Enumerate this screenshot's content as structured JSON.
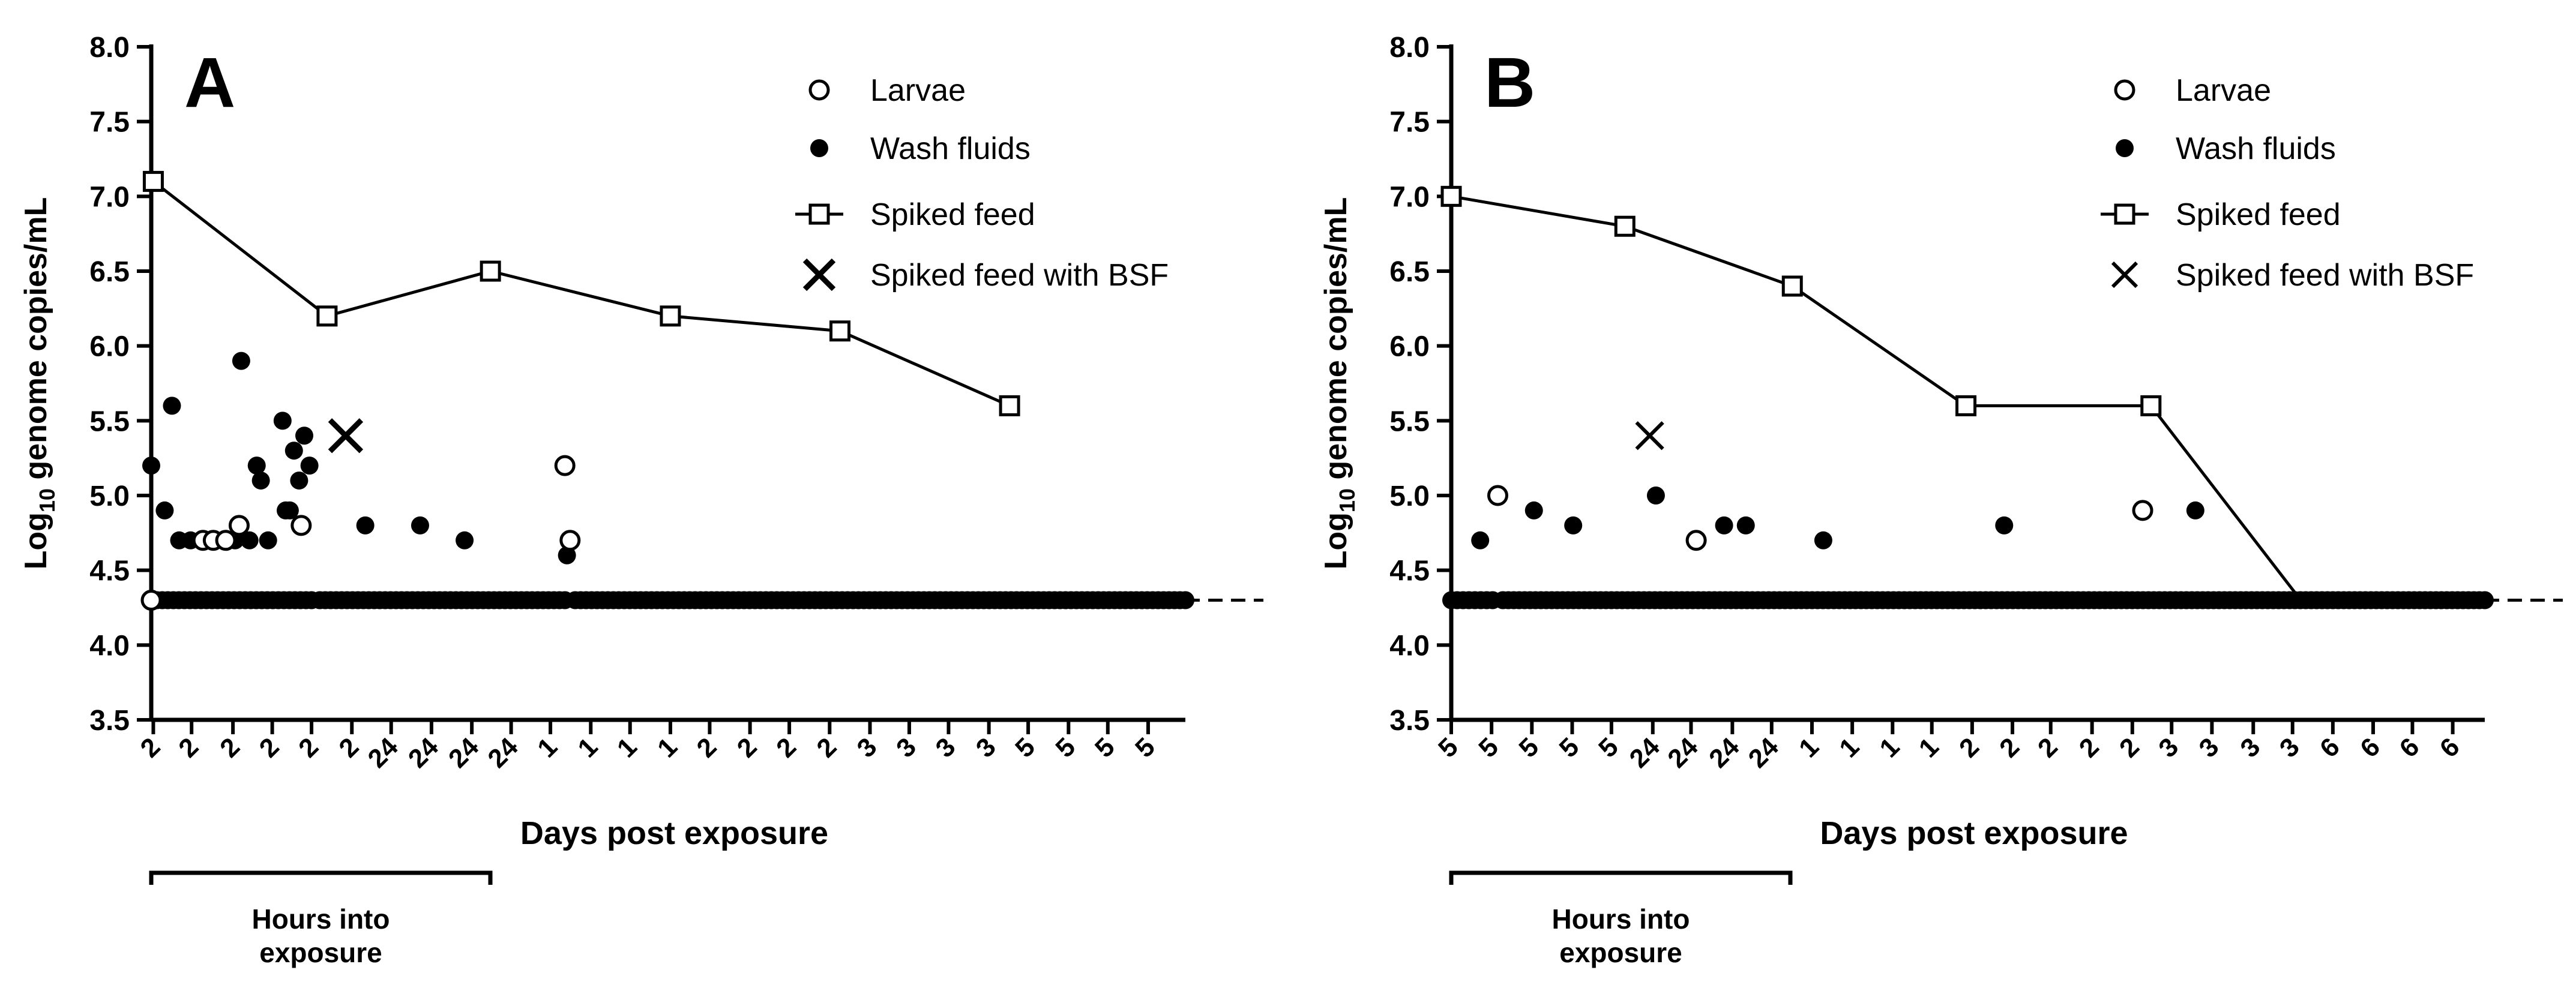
{
  "figure": {
    "footnote_label": "Hours into exposure",
    "footnote_lines": [
      "Hours into",
      "exposure"
    ]
  },
  "chart_data": [
    {
      "panel": "A",
      "type": "scatter",
      "title": "A",
      "xlabel": "Days post exposure",
      "ylabel_main": "Log",
      "ylabel_sub": "10",
      "ylabel_rest": " genome copies/mL",
      "ylim": [
        3.5,
        8.0
      ],
      "yticks": [
        "3.5",
        "4.0",
        "4.5",
        "5.0",
        "5.5",
        "6.0",
        "6.5",
        "7.0",
        "7.5",
        "8.0"
      ],
      "xlim": [
        0,
        100
      ],
      "xtick_positions": [
        0.2,
        3.9,
        7.9,
        11.7,
        15.5,
        19.4,
        23.2,
        27.1,
        31.0,
        34.8,
        38.6,
        42.5,
        46.3,
        50.2,
        54.0,
        57.9,
        61.7,
        65.6,
        69.5,
        73.3,
        77.1,
        81.0,
        84.8,
        88.7,
        92.5,
        96.4
      ],
      "xtick_labels": [
        "2",
        "2",
        "2",
        "2",
        "2",
        "2",
        "24",
        "24",
        "24",
        "24",
        "1",
        "1",
        "1",
        "1",
        "2",
        "2",
        "2",
        "2",
        "3",
        "3",
        "3",
        "3",
        "5",
        "5",
        "5",
        "5"
      ],
      "detection_limit": 4.3,
      "legend": [
        "Larvae",
        "Wash fluids",
        "Spiked feed",
        "Spiked feed with BSF"
      ],
      "series": [
        {
          "name": "Spiked feed",
          "marker": "square-line",
          "x": [
            0.2,
            17.0,
            32.8,
            50.2,
            66.6,
            83.0
          ],
          "y": [
            7.1,
            6.2,
            6.5,
            6.2,
            6.1,
            5.6
          ]
        },
        {
          "name": "Wash fluids",
          "marker": "filled-circle",
          "x": [
            0.0,
            1.3,
            2.0,
            2.7,
            3.8,
            6.2,
            8.1,
            8.7,
            9.5,
            10.2,
            10.6,
            11.3,
            12.7,
            13.0,
            13.4,
            13.8,
            14.3,
            14.8,
            15.3,
            20.7,
            26.0,
            30.3,
            40.2
          ],
          "y": [
            5.2,
            4.9,
            5.6,
            4.7,
            4.7,
            4.7,
            4.7,
            5.9,
            4.7,
            5.2,
            5.1,
            4.7,
            5.5,
            4.9,
            4.9,
            5.3,
            5.1,
            5.4,
            5.2,
            4.8,
            4.8,
            4.7,
            4.6
          ]
        },
        {
          "name": "Larvae",
          "marker": "open-circle",
          "x": [
            0.0,
            5.0,
            6.0,
            7.2,
            8.5,
            14.5,
            40.0,
            40.5
          ],
          "y": [
            4.3,
            4.7,
            4.7,
            4.7,
            4.8,
            4.8,
            5.2,
            4.7
          ]
        },
        {
          "name": "Spiked feed with BSF",
          "marker": "cross",
          "x": [
            18.8
          ],
          "y": [
            5.4
          ]
        }
      ],
      "baseline_segments": [
        [
          0.0,
          15.5
        ],
        [
          16.3,
          40.0
        ],
        [
          41.0,
          100.0
        ]
      ]
    },
    {
      "panel": "B",
      "type": "scatter",
      "title": "B",
      "xlabel": "Days post exposure",
      "ylabel_main": "Log",
      "ylabel_sub": "10",
      "ylabel_rest": " genome copies/mL",
      "ylim": [
        3.5,
        8.0
      ],
      "yticks": [
        "3.5",
        "4.0",
        "4.5",
        "5.0",
        "5.5",
        "6.0",
        "6.5",
        "7.0",
        "7.5",
        "8.0"
      ],
      "xlim": [
        0,
        100
      ],
      "xtick_positions": [
        0.0,
        3.9,
        7.8,
        11.7,
        15.5,
        19.5,
        23.2,
        27.2,
        31.0,
        34.9,
        38.8,
        42.7,
        46.5,
        50.4,
        54.3,
        58.0,
        62.0,
        65.9,
        69.7,
        73.6,
        77.6,
        81.4,
        85.3,
        89.2,
        93.0,
        96.9
      ],
      "xtick_labels": [
        "5",
        "5",
        "5",
        "5",
        "5",
        "24",
        "24",
        "24",
        "24",
        "1",
        "1",
        "1",
        "1",
        "2",
        "2",
        "2",
        "2",
        "2",
        "3",
        "3",
        "3",
        "3",
        "6",
        "6",
        "6",
        "6"
      ],
      "detection_limit": 4.3,
      "legend": [
        "Larvae",
        "Wash fluids",
        "Spiked feed",
        "Spiked feed with BSF"
      ],
      "series": [
        {
          "name": "Spiked feed",
          "marker": "square-line",
          "x": [
            0.0,
            16.8,
            33.0,
            49.8,
            67.7
          ],
          "y": [
            7.0,
            6.8,
            6.4,
            5.6,
            5.6
          ],
          "line_extends_to": {
            "x": 82.2,
            "y": 4.3
          }
        },
        {
          "name": "Wash fluids",
          "marker": "filled-circle",
          "x": [
            2.8,
            8.0,
            11.8,
            19.8,
            26.4,
            28.5,
            36.0,
            53.5,
            72.0
          ],
          "y": [
            4.7,
            4.9,
            4.8,
            5.0,
            4.8,
            4.8,
            4.7,
            4.8,
            4.9
          ]
        },
        {
          "name": "Larvae",
          "marker": "open-circle",
          "x": [
            4.5,
            23.7,
            66.9
          ],
          "y": [
            5.0,
            4.7,
            4.9
          ]
        },
        {
          "name": "Spiked feed with BSF",
          "marker": "cross",
          "x": [
            19.2
          ],
          "y": [
            5.4
          ]
        }
      ],
      "baseline_segments": [
        [
          0.0,
          4.0
        ],
        [
          5.0,
          100.0
        ]
      ]
    }
  ]
}
